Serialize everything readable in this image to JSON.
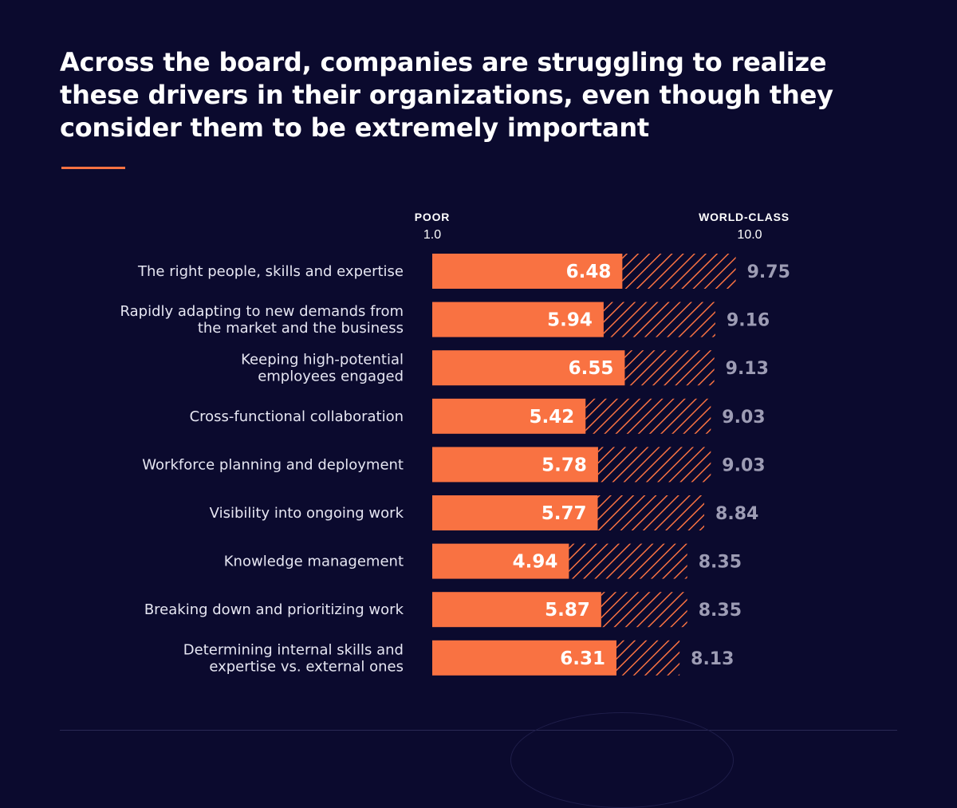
{
  "title": "Across the board, companies are struggling to realize these drivers in their organizations, even though they consider them to be extremely important",
  "colors": {
    "background": "#0b0a2e",
    "actual_bar": "#f97242",
    "target_hatch": "#f97242",
    "target_label": "#9d9cb4",
    "accent_rule": "#f97242"
  },
  "chart_data": {
    "type": "bar",
    "orientation": "horizontal",
    "scale": {
      "min_label": "POOR",
      "min_value_label": "1.0",
      "max_label": "WORLD-CLASS",
      "max_value_label": "10.0",
      "min": 1.0,
      "max": 10.0
    },
    "categories": [
      [
        "The right people, skills and expertise"
      ],
      [
        "Rapidly adapting to new demands from",
        "the market and the business"
      ],
      [
        "Keeping high-potential",
        "employees engaged"
      ],
      [
        "Cross-functional collaboration"
      ],
      [
        "Workforce planning and deployment"
      ],
      [
        "Visibility into ongoing work"
      ],
      [
        "Knowledge management"
      ],
      [
        "Breaking down and prioritizing work"
      ],
      [
        "Determining internal skills and",
        "expertise vs. external ones"
      ]
    ],
    "series": [
      {
        "values": [
          6.48,
          5.94,
          6.55,
          5.42,
          5.78,
          5.77,
          4.94,
          5.87,
          6.31
        ]
      },
      {
        "values": [
          9.75,
          9.16,
          9.13,
          9.03,
          9.03,
          8.84,
          8.35,
          8.35,
          8.13
        ]
      }
    ],
    "grid": false
  }
}
